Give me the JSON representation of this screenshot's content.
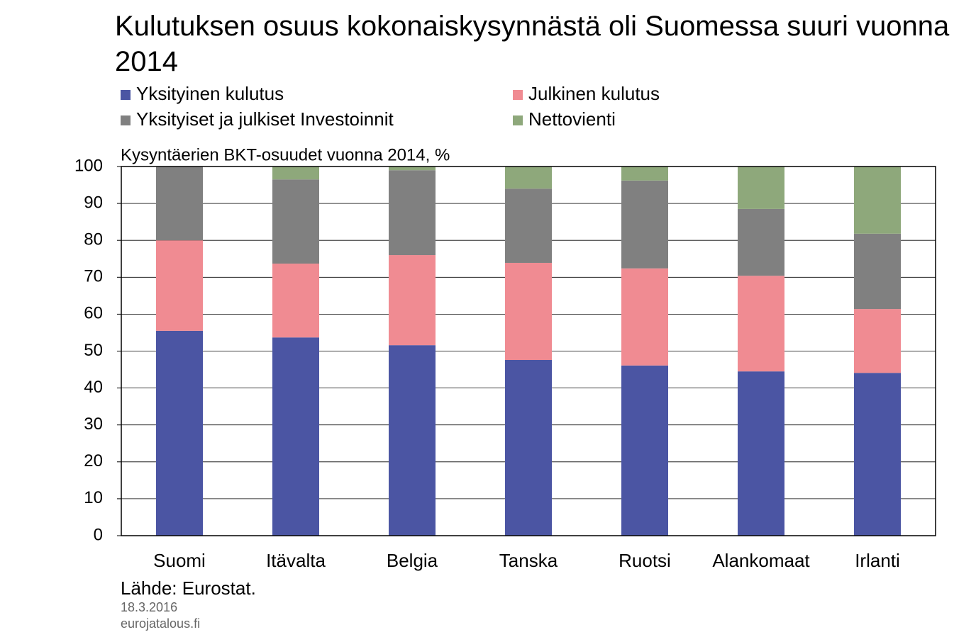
{
  "chart_data": {
    "type": "stacked-bar",
    "title": "Kulutuksen osuus kokonaiskysynnästä oli Suomessa suuri vuonna 2014",
    "subtitle": "Kysyntäerien BKT-osuudet vuonna 2014, %",
    "source": "Lähde: Eurostat.",
    "date": "18.3.2016",
    "site": "eurojatalous.fi",
    "categories": [
      "Suomi",
      "Itävalta",
      "Belgia",
      "Tanska",
      "Ruotsi",
      "Alankomaat",
      "Irlanti"
    ],
    "series": [
      {
        "name": "Yksityinen kulutus",
        "color": "#4b55a3",
        "values": [
          55.5,
          53.7,
          51.6,
          47.6,
          46.1,
          44.5,
          44.1
        ]
      },
      {
        "name": "Julkinen kulutus",
        "color": "#f08b92",
        "values": [
          24.5,
          20.0,
          24.4,
          26.3,
          26.3,
          25.9,
          17.3
        ]
      },
      {
        "name": "Yksityiset ja julkiset Investoinnit",
        "color": "#808080",
        "values": [
          20.0,
          22.8,
          23.0,
          20.1,
          23.8,
          18.1,
          20.4
        ]
      },
      {
        "name": "Nettovienti",
        "color": "#8ea87b",
        "values": [
          0,
          3.5,
          1.0,
          6.0,
          3.8,
          11.5,
          18.2
        ]
      }
    ],
    "ylim": [
      0,
      100
    ],
    "yticks": [
      0,
      10,
      20,
      30,
      40,
      50,
      60,
      70,
      80,
      90,
      100
    ],
    "grid": true
  }
}
